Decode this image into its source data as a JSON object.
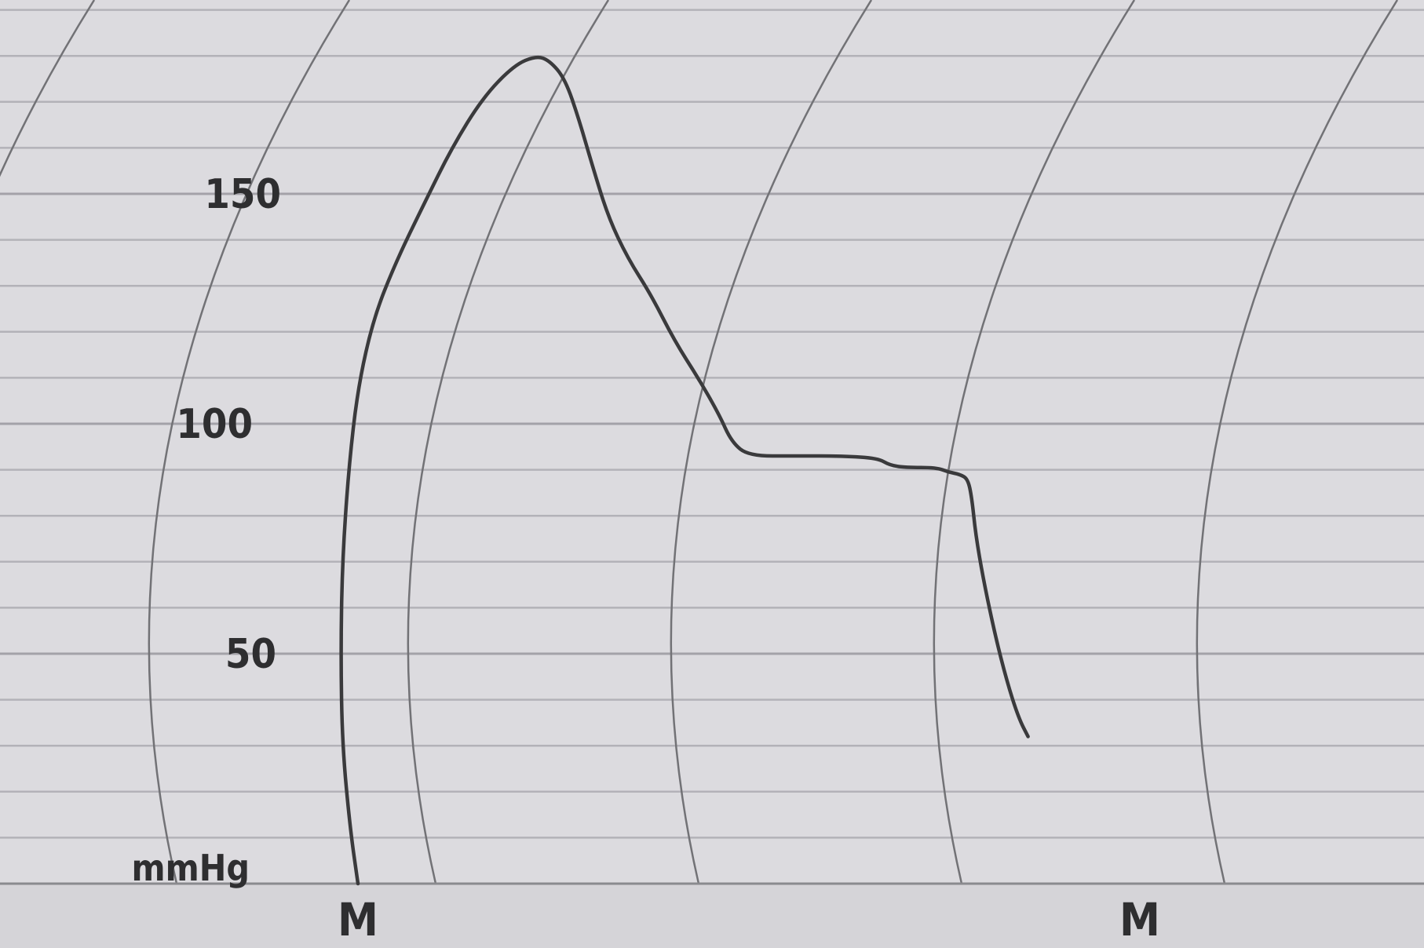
{
  "chart_data": {
    "type": "line",
    "title": "",
    "xlabel": "",
    "ylabel": "mmHg",
    "ylim": [
      0,
      185
    ],
    "y_ticks": [
      {
        "value": 150,
        "label": "150"
      },
      {
        "value": 100,
        "label": "100"
      },
      {
        "value": 50,
        "label": "50"
      }
    ],
    "x_markers": [
      {
        "x": 0,
        "label": "M"
      },
      {
        "x": 1,
        "label": "M"
      }
    ],
    "xlim": [
      -0.05,
      1.18
    ],
    "grid": true,
    "series": [
      {
        "color": "#3a3a3c",
        "points": [
          [
            0.0,
            0
          ],
          [
            -0.01,
            12
          ],
          [
            -0.02,
            30
          ],
          [
            -0.022,
            50
          ],
          [
            -0.02,
            70
          ],
          [
            -0.012,
            90
          ],
          [
            0.0,
            108
          ],
          [
            0.02,
            123
          ],
          [
            0.048,
            135
          ],
          [
            0.085,
            148
          ],
          [
            0.12,
            160
          ],
          [
            0.16,
            171
          ],
          [
            0.2,
            178
          ],
          [
            0.228,
            180
          ],
          [
            0.245,
            179
          ],
          [
            0.265,
            175
          ],
          [
            0.283,
            166
          ],
          [
            0.3,
            156
          ],
          [
            0.32,
            145
          ],
          [
            0.345,
            136
          ],
          [
            0.375,
            128
          ],
          [
            0.405,
            118
          ],
          [
            0.435,
            110
          ],
          [
            0.462,
            102
          ],
          [
            0.478,
            96
          ],
          [
            0.5,
            93
          ],
          [
            0.56,
            93
          ],
          [
            0.62,
            93
          ],
          [
            0.665,
            92.5
          ],
          [
            0.68,
            91
          ],
          [
            0.7,
            90.5
          ],
          [
            0.74,
            90.5
          ],
          [
            0.755,
            89.5
          ],
          [
            0.77,
            89
          ],
          [
            0.78,
            88
          ],
          [
            0.785,
            84
          ],
          [
            0.79,
            76
          ],
          [
            0.8,
            66
          ],
          [
            0.815,
            54
          ],
          [
            0.83,
            44
          ],
          [
            0.845,
            36
          ],
          [
            0.857,
            32
          ]
        ]
      }
    ]
  }
}
